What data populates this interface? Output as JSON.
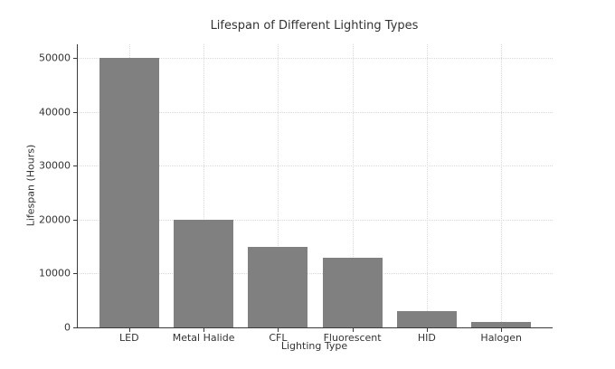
{
  "chart_data": {
    "type": "bar",
    "title": "Lifespan of Different Lighting Types",
    "xlabel": "Lighting Type",
    "ylabel": "Lifespan (Hours)",
    "categories": [
      "LED",
      "Metal Halide",
      "CFL",
      "Fluorescent",
      "HID",
      "Halogen"
    ],
    "values": [
      50000,
      20000,
      15000,
      13000,
      3000,
      1000
    ],
    "yticks": [
      0,
      10000,
      20000,
      30000,
      40000,
      50000
    ],
    "ylim": [
      0,
      52500
    ],
    "xlim": [
      -0.69,
      5.69
    ],
    "bar_width_units": 0.8,
    "grid": "dotted, both horizontal and vertical",
    "legend": "none",
    "colors": {
      "bar": "#808080",
      "grid": "#d9d9d9",
      "axis": "#3a3a3a",
      "text": "#333333",
      "background": "#ffffff"
    }
  }
}
